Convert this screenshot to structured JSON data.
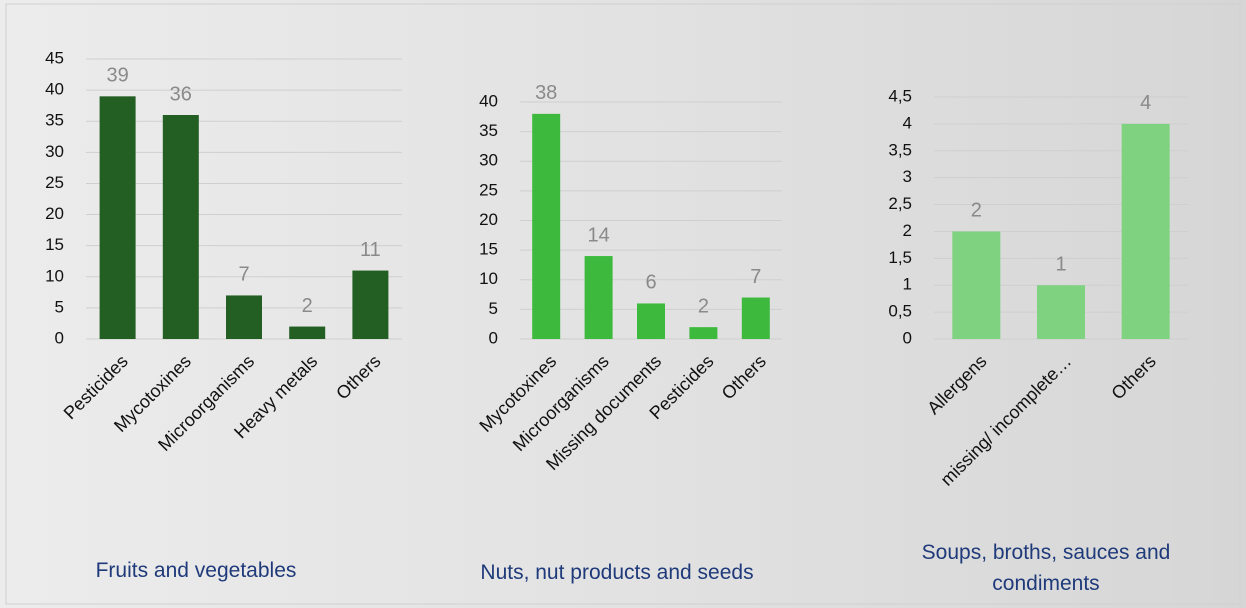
{
  "chart_data": [
    {
      "type": "bar",
      "title": "Fruits and vegetables",
      "categories": [
        "Pesticides",
        "Mycotoxines",
        "Microorganisms",
        "Heavy metals",
        "Others"
      ],
      "values": [
        39,
        36,
        7,
        2,
        11
      ],
      "color": "#235f23",
      "ylim": [
        0,
        45
      ],
      "yticks": [
        0,
        5,
        10,
        15,
        20,
        25,
        30,
        35,
        40,
        45
      ],
      "grid": true
    },
    {
      "type": "bar",
      "title": "Nuts, nut products and seeds",
      "categories": [
        "Mycotoxines",
        "Microorganisms",
        "Missing documents",
        "Pesticides",
        "Others"
      ],
      "values": [
        38,
        14,
        6,
        2,
        7
      ],
      "color": "#3dba3d",
      "ylim": [
        0,
        40
      ],
      "yticks": [
        0,
        5,
        10,
        15,
        20,
        25,
        30,
        35,
        40
      ],
      "grid": true
    },
    {
      "type": "bar",
      "title": "Soups, broths, sauces and condiments",
      "categories": [
        "Allergens",
        "missing/ incomplete…",
        "Others"
      ],
      "values": [
        2,
        1,
        4
      ],
      "color": "#7fd27f",
      "ylim": [
        0,
        4.5
      ],
      "yticks": [
        0,
        {
          "value": 0.5,
          "label": "0,5"
        },
        1,
        {
          "value": 1.5,
          "label": "1,5"
        },
        2,
        {
          "value": 2.5,
          "label": "2,5"
        },
        3,
        {
          "value": 3.5,
          "label": "3,5"
        },
        4,
        {
          "value": 4.5,
          "label": "4,5"
        }
      ],
      "grid": true
    }
  ]
}
